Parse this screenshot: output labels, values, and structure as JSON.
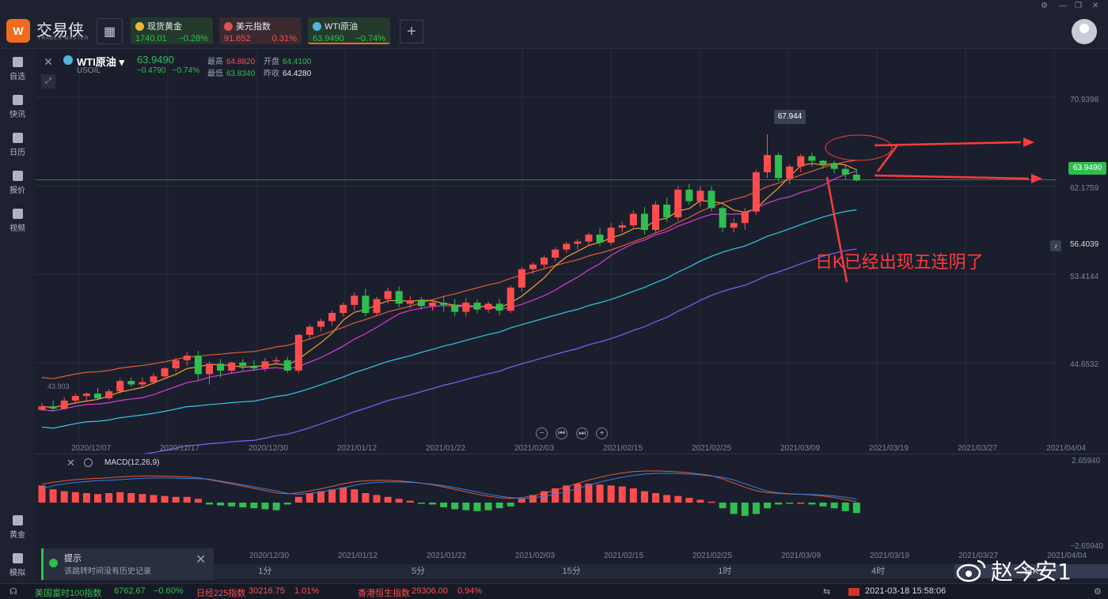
{
  "app": {
    "brand": "交易侠",
    "brand_sub": "TRADER MASTER"
  },
  "tickers": [
    {
      "name": "现货黄金",
      "price": "1740.01",
      "change": "−0.28%",
      "flag_color": "#e9b83b",
      "price_color": "#2fbf4f",
      "change_color": "#2fbf4f"
    },
    {
      "name": "美元指数",
      "price": "91.652",
      "change": "0.31%",
      "flag_color": "#d9534f",
      "price_color": "#ff4d4d",
      "change_color": "#ff4d4d"
    },
    {
      "name": "WTI原油",
      "price": "63.9490",
      "change": "−0.74%",
      "flag_color": "#4fb6d9",
      "price_color": "#2fbf4f",
      "change_color": "#2fbf4f"
    }
  ],
  "sidebar": {
    "items": [
      {
        "label": "自选",
        "icon": "bookmark-icon"
      },
      {
        "label": "快讯",
        "icon": "news-icon"
      },
      {
        "label": "日历",
        "icon": "calendar-icon"
      },
      {
        "label": "报价",
        "icon": "quote-icon"
      },
      {
        "label": "视频",
        "icon": "video-icon"
      },
      {
        "label": "黄金",
        "icon": "gold-icon"
      },
      {
        "label": "模拟",
        "icon": "wallet-icon"
      }
    ]
  },
  "symbol": {
    "name": "WTI原油",
    "code": "USOIL",
    "price": "63.9490",
    "change": "−0.4790",
    "change_pct": "−0.74%",
    "high_label": "最高",
    "high": "64.8820",
    "open_label": "开盘",
    "open": "64.4100",
    "low_label": "最低",
    "low": "63.8340",
    "prev_label": "昨收",
    "prev": "64.4280"
  },
  "price_axis": [
    "70.9398",
    "62.1759",
    "53.4144",
    "44.6532"
  ],
  "current_price_badge": "63.9490",
  "alert_price": "56.4039",
  "peak_label": "67.944",
  "low_label": "43.903",
  "annotation": "日K已经出现五连阴了",
  "x_dates_main": [
    "2020/12/07",
    "2020/12/17",
    "2020/12/30",
    "2021/01/12",
    "2021/01/22",
    "2021/02/03",
    "2021/02/15",
    "2021/02/25",
    "2021/03/09",
    "2021/03/19",
    "2021/03/27",
    "2021/04/04"
  ],
  "x_dates_macd": [
    "2020/12/30",
    "2021/01/12",
    "2021/01/22",
    "2021/02/03",
    "2021/02/15",
    "2021/02/25",
    "2021/03/09",
    "2021/03/19",
    "2021/03/27",
    "2021/04/04"
  ],
  "macd": {
    "title": "MACD(12,26,9)",
    "top": "2.65940",
    "bottom": "−2.65940"
  },
  "timeframes": [
    "1分",
    "5分",
    "15分",
    "1时",
    "4时",
    "日K"
  ],
  "active_timeframe": "日K",
  "toast": {
    "title": "提示",
    "message": "该跳转时间没有历史记录"
  },
  "status": {
    "items": [
      {
        "name": "美国富时100指数",
        "value": "6762.67",
        "change": "−0.60%",
        "color": "#2fbf4f"
      },
      {
        "name": "日经225指数",
        "value": "30216.75",
        "change": "1.01%",
        "color": "#ff4d4d"
      },
      {
        "name": "香港恒生指数",
        "value": "29306.00",
        "change": "0.94%",
        "color": "#ff4d4d"
      }
    ],
    "datetime": "2021-03-18 15:58:06"
  },
  "watermark": "赵今安1",
  "chart_data": {
    "type": "candlestick",
    "ylim": [
      40.2,
      75.3
    ],
    "candles": [
      [
        44.0,
        44.6,
        43.9,
        44.3
      ],
      [
        44.3,
        44.8,
        43.9,
        44.1
      ],
      [
        44.1,
        45.1,
        44.0,
        44.8
      ],
      [
        44.8,
        45.4,
        44.5,
        45.2
      ],
      [
        45.2,
        45.5,
        44.8,
        45.4
      ],
      [
        45.4,
        45.9,
        44.9,
        45.0
      ],
      [
        45.0,
        45.8,
        44.9,
        45.6
      ],
      [
        45.6,
        46.7,
        45.4,
        46.5
      ],
      [
        46.5,
        46.8,
        46.0,
        46.2
      ],
      [
        46.2,
        46.8,
        46.0,
        46.4
      ],
      [
        46.4,
        47.2,
        46.2,
        46.9
      ],
      [
        46.9,
        47.7,
        46.6,
        47.6
      ],
      [
        47.6,
        48.5,
        47.3,
        48.3
      ],
      [
        48.3,
        49.0,
        47.8,
        48.7
      ],
      [
        48.7,
        49.1,
        46.6,
        47.1
      ],
      [
        47.1,
        48.2,
        46.2,
        48.0
      ],
      [
        48.0,
        48.4,
        46.8,
        47.4
      ],
      [
        47.4,
        48.2,
        47.1,
        48.1
      ],
      [
        48.1,
        48.4,
        47.4,
        47.8
      ],
      [
        47.8,
        48.3,
        47.4,
        47.6
      ],
      [
        47.6,
        48.5,
        47.3,
        48.2
      ],
      [
        48.2,
        48.6,
        47.9,
        48.3
      ],
      [
        48.3,
        48.6,
        47.2,
        47.4
      ],
      [
        47.4,
        50.6,
        47.2,
        50.5
      ],
      [
        50.5,
        51.4,
        50.2,
        51.2
      ],
      [
        51.2,
        51.9,
        50.8,
        51.7
      ],
      [
        51.7,
        52.6,
        51.3,
        52.4
      ],
      [
        52.4,
        53.3,
        52.1,
        53.1
      ],
      [
        53.1,
        54.2,
        52.6,
        53.9
      ],
      [
        53.9,
        54.5,
        52.1,
        52.4
      ],
      [
        52.4,
        53.8,
        52.1,
        53.6
      ],
      [
        53.6,
        54.6,
        53.2,
        54.3
      ],
      [
        54.3,
        54.7,
        52.9,
        53.2
      ],
      [
        53.2,
        53.9,
        52.8,
        53.5
      ],
      [
        53.5,
        53.8,
        52.7,
        53.0
      ],
      [
        53.0,
        53.6,
        52.6,
        53.3
      ],
      [
        53.3,
        53.9,
        52.5,
        53.1
      ],
      [
        53.1,
        53.6,
        52.1,
        52.5
      ],
      [
        52.5,
        53.7,
        52.1,
        53.3
      ],
      [
        53.3,
        53.6,
        52.4,
        52.7
      ],
      [
        52.7,
        53.4,
        52.4,
        53.2
      ],
      [
        53.2,
        53.6,
        52.2,
        52.6
      ],
      [
        52.6,
        54.8,
        52.4,
        54.6
      ],
      [
        54.6,
        56.4,
        54.3,
        56.2
      ],
      [
        56.2,
        56.8,
        55.8,
        56.6
      ],
      [
        56.6,
        57.4,
        56.3,
        57.2
      ],
      [
        57.2,
        58.1,
        56.9,
        57.9
      ],
      [
        57.9,
        58.6,
        57.6,
        58.4
      ],
      [
        58.4,
        58.8,
        57.9,
        58.6
      ],
      [
        58.6,
        59.4,
        58.2,
        59.2
      ],
      [
        59.2,
        59.8,
        58.2,
        58.5
      ],
      [
        58.5,
        60.2,
        58.3,
        59.8
      ],
      [
        59.8,
        60.3,
        59.4,
        60.0
      ],
      [
        60.0,
        61.3,
        59.8,
        61.0
      ],
      [
        61.0,
        61.6,
        59.2,
        59.6
      ],
      [
        59.6,
        62.1,
        59.3,
        61.8
      ],
      [
        61.8,
        62.4,
        60.3,
        60.7
      ],
      [
        60.7,
        63.4,
        60.4,
        63.1
      ],
      [
        63.1,
        63.6,
        61.8,
        62.1
      ],
      [
        62.1,
        63.4,
        61.6,
        63.0
      ],
      [
        63.0,
        63.4,
        61.2,
        61.5
      ],
      [
        61.5,
        61.7,
        59.4,
        59.8
      ],
      [
        59.8,
        60.6,
        59.4,
        60.2
      ],
      [
        60.2,
        61.5,
        59.6,
        61.2
      ],
      [
        61.2,
        64.8,
        60.9,
        64.6
      ],
      [
        64.6,
        67.9,
        64.1,
        66.1
      ],
      [
        66.1,
        66.3,
        63.8,
        64.1
      ],
      [
        64.1,
        65.3,
        63.6,
        65.1
      ],
      [
        65.1,
        66.2,
        64.6,
        66.0
      ],
      [
        66.0,
        66.3,
        65.1,
        65.6
      ],
      [
        65.6,
        65.7,
        64.9,
        65.3
      ],
      [
        65.3,
        65.6,
        64.5,
        64.9
      ],
      [
        64.9,
        65.2,
        64.0,
        64.4
      ],
      [
        64.4,
        64.9,
        63.8,
        63.9
      ]
    ],
    "macd_hist": [
      0.9,
      0.7,
      0.6,
      0.55,
      0.5,
      0.45,
      0.5,
      0.55,
      0.5,
      0.45,
      0.4,
      0.35,
      0.3,
      0.3,
      0.2,
      -0.1,
      -0.15,
      -0.2,
      -0.25,
      -0.3,
      -0.35,
      -0.4,
      -0.1,
      0.3,
      0.5,
      0.6,
      0.7,
      0.8,
      0.7,
      0.5,
      0.4,
      0.3,
      0.2,
      0.1,
      -0.05,
      -0.1,
      -0.25,
      -0.35,
      -0.4,
      -0.45,
      -0.4,
      -0.3,
      -0.2,
      0.2,
      0.4,
      0.6,
      0.75,
      0.9,
      1.0,
      1.0,
      0.95,
      0.9,
      0.85,
      0.75,
      0.6,
      0.5,
      0.4,
      0.35,
      0.25,
      0.15,
      0.05,
      -0.3,
      -0.6,
      -0.7,
      -0.6,
      -0.3,
      -0.1,
      -0.05,
      0.0,
      -0.1,
      -0.2,
      -0.3,
      -0.45,
      -0.55
    ],
    "ma_colors": {
      "bb_upper": "#e05a3a",
      "ma5": "#f2a12e",
      "ma10": "#d93ad9",
      "ma20": "#38c7ea",
      "ma60": "#8b5cf6"
    }
  }
}
